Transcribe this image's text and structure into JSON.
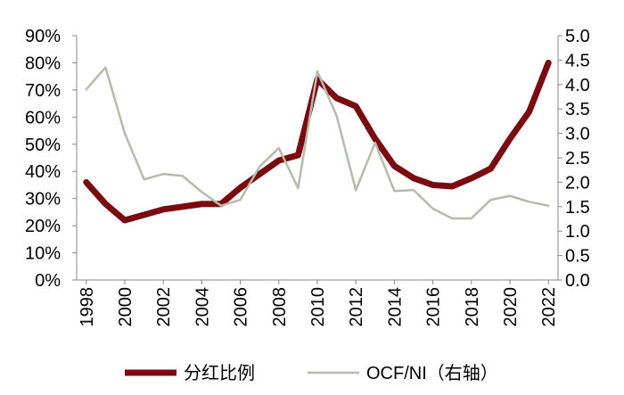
{
  "chart_data": {
    "type": "line",
    "x": [
      1998,
      1999,
      2000,
      2001,
      2002,
      2003,
      2004,
      2005,
      2006,
      2007,
      2008,
      2009,
      2010,
      2011,
      2012,
      2013,
      2014,
      2015,
      2016,
      2017,
      2018,
      2019,
      2020,
      2021,
      2022
    ],
    "xlim": [
      1997.5,
      2022.5
    ],
    "xticks": [
      1998,
      2000,
      2002,
      2004,
      2006,
      2008,
      2010,
      2012,
      2014,
      2016,
      2018,
      2020,
      2022
    ],
    "ylim": [
      0,
      90
    ],
    "yticks": [
      {
        "value": 0,
        "label": "0%"
      },
      {
        "value": 10,
        "label": "10%"
      },
      {
        "value": 20,
        "label": "20%"
      },
      {
        "value": 30,
        "label": "30%"
      },
      {
        "value": 40,
        "label": "40%"
      },
      {
        "value": 50,
        "label": "50%"
      },
      {
        "value": 60,
        "label": "60%"
      },
      {
        "value": 70,
        "label": "70%"
      },
      {
        "value": 80,
        "label": "80%"
      },
      {
        "value": 90,
        "label": "90%"
      }
    ],
    "y2lim": [
      0,
      5
    ],
    "y2ticks": [
      {
        "value": 0,
        "label": "0.0"
      },
      0.5,
      {
        "value": 1,
        "label": "1.0"
      },
      1.5,
      {
        "value": 2,
        "label": "2.0"
      },
      2.5,
      {
        "value": 3,
        "label": "3.0"
      },
      3.5,
      {
        "value": 4,
        "label": "4.0"
      },
      4.5,
      {
        "value": 5,
        "label": "5.0"
      }
    ],
    "series": [
      {
        "name": "分红比例",
        "color": "#7a0a0f",
        "width": 7,
        "values": [
          36,
          28,
          22,
          24,
          26,
          27,
          28,
          28,
          34,
          39,
          44,
          46,
          74,
          67,
          64,
          52,
          42,
          37.5,
          35,
          34.5,
          37.5,
          41,
          52,
          62,
          80
        ]
      },
      {
        "name": "OCF/NI（右轴）",
        "color": "#b5bcaa",
        "width": 2.5,
        "axis": "y2",
        "values": [
          3.9,
          4.35,
          3.0,
          2.06,
          2.17,
          2.13,
          1.8,
          1.52,
          1.64,
          2.32,
          2.7,
          1.88,
          4.27,
          3.36,
          1.84,
          2.81,
          1.82,
          1.84,
          1.46,
          1.26,
          1.26,
          1.64,
          1.72,
          1.6,
          1.52
        ]
      }
    ],
    "legend": "bottom"
  }
}
